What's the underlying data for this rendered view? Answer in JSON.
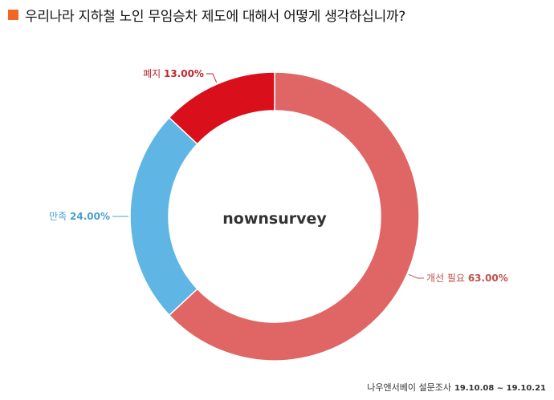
{
  "title": "우리나라 지하철 노인 무임승차 제도에 대해서 어떻게 생각하십니까?",
  "title_marker_color": "#f26522",
  "footer": {
    "source": "나우앤서베이 설문조사",
    "period": "19.10.08 ~ 19.10.21"
  },
  "chart_data": {
    "type": "pie",
    "style": "donut",
    "center_label": "nownsurvey",
    "slices": [
      {
        "label": "개선 필요",
        "value": 63.0,
        "value_label": "63.00%",
        "color": "#e06666"
      },
      {
        "label": "만족",
        "value": 24.0,
        "value_label": "24.00%",
        "color": "#5fb6e4"
      },
      {
        "label": "폐지",
        "value": 13.0,
        "value_label": "13.00%",
        "color": "#d90f1b"
      }
    ],
    "label_colors": {
      "개선 필요": "#c0504d",
      "만족": "#4a9fd4",
      "폐지": "#c0272d"
    }
  }
}
